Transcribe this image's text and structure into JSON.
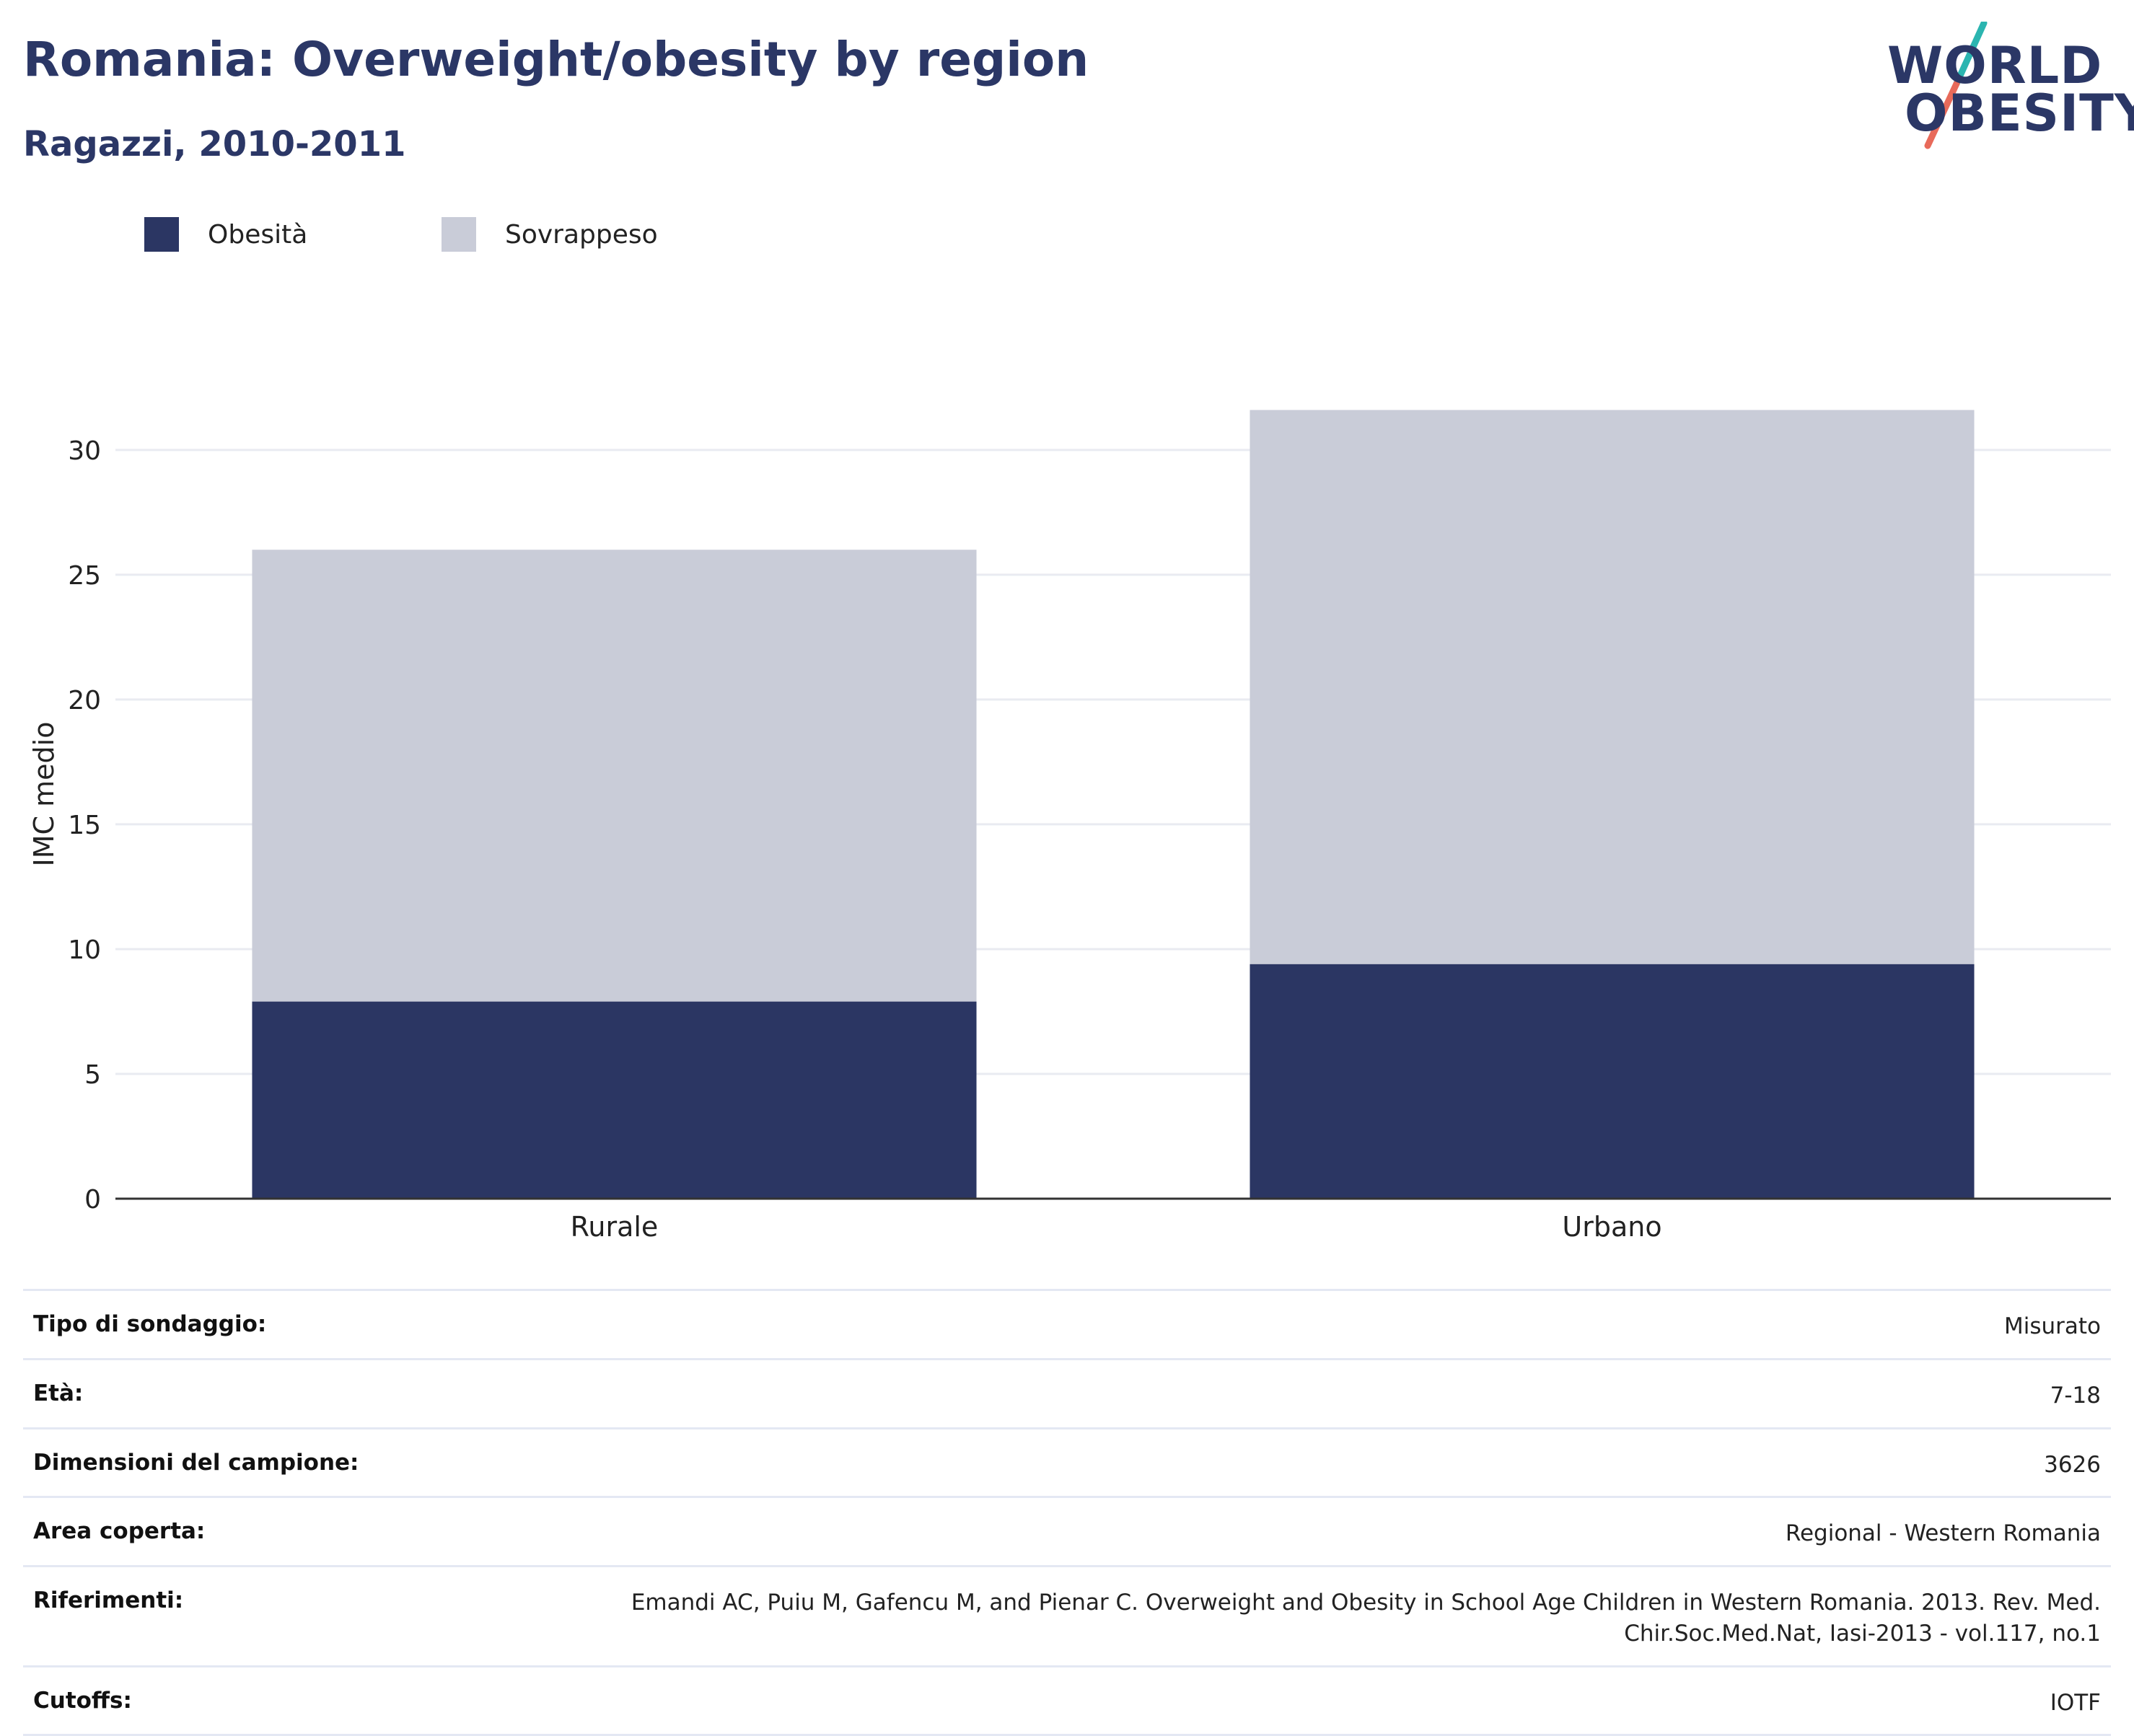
{
  "header": {
    "title": "Romania: Overweight/obesity by region",
    "subtitle": "Ragazzi, 2010-2011"
  },
  "logo": {
    "line1": "WORLD",
    "line2": "OBESITY",
    "accent_colors": [
      "#2bb5b0",
      "#e86a5a"
    ]
  },
  "colors": {
    "obesity": "#2b3663",
    "overweight": "#c9ccd8",
    "title": "#2b3766",
    "grid": "#e9ebf1",
    "axis": "#333333"
  },
  "chart_data": {
    "type": "bar",
    "stacked": true,
    "categories": [
      "Rurale",
      "Urbano"
    ],
    "series": [
      {
        "name": "Obesità",
        "values": [
          7.9,
          9.4
        ]
      },
      {
        "name": "Sovrappeso",
        "values": [
          18.1,
          22.2
        ]
      }
    ],
    "ylabel": "IMC medio",
    "xlabel": "",
    "ylim": [
      0,
      33
    ],
    "yticks": [
      0,
      5,
      10,
      15,
      20,
      25,
      30
    ],
    "grid": true,
    "legend_position": "top-left"
  },
  "info": [
    {
      "label": "Tipo di sondaggio:",
      "value": "Misurato"
    },
    {
      "label": "Età:",
      "value": "7-18"
    },
    {
      "label": "Dimensioni del campione:",
      "value": "3626"
    },
    {
      "label": "Area coperta:",
      "value": "Regional - Western Romania"
    },
    {
      "label": "Riferimenti:",
      "value": "Emandi AC, Puiu M, Gafencu M, and Pienar C. Overweight and Obesity in School Age Children in Western Romania. 2013. Rev. Med. Chir.Soc.Med.Nat, Iasi-2013 - vol.117, no.1"
    },
    {
      "label": "Cutoffs:",
      "value": "IOTF"
    }
  ]
}
